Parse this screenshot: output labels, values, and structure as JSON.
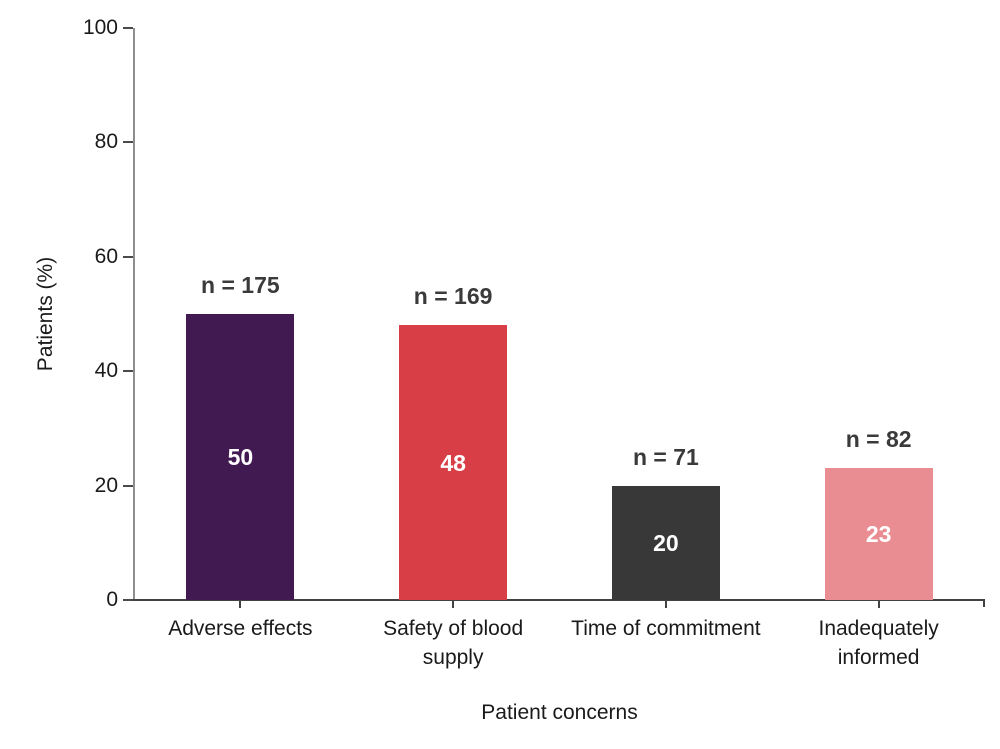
{
  "chart_data": {
    "type": "bar",
    "title": "",
    "xlabel": "Patient concerns",
    "ylabel": "Patients (%)",
    "categories": [
      "Adverse effects",
      "Safety of blood\nsupply",
      "Time of commitment",
      "Inadequately\ninformed"
    ],
    "values": [
      50,
      48,
      20,
      23
    ],
    "value_labels": [
      "50",
      "48",
      "20",
      "23"
    ],
    "counts": [
      175,
      169,
      71,
      82
    ],
    "count_labels": [
      "n = 175",
      "n = 169",
      "n = 71",
      "n = 82"
    ],
    "bar_colors": [
      "#421a52",
      "#d83e46",
      "#383838",
      "#e98d92"
    ],
    "ylim": [
      0,
      100
    ],
    "yticks": [
      0,
      20,
      40,
      60,
      80,
      100
    ],
    "grid": false,
    "legend": false,
    "background": "#ffffff",
    "y_axis_color": "#8e8e8e",
    "x_axis_color": "#424242"
  }
}
